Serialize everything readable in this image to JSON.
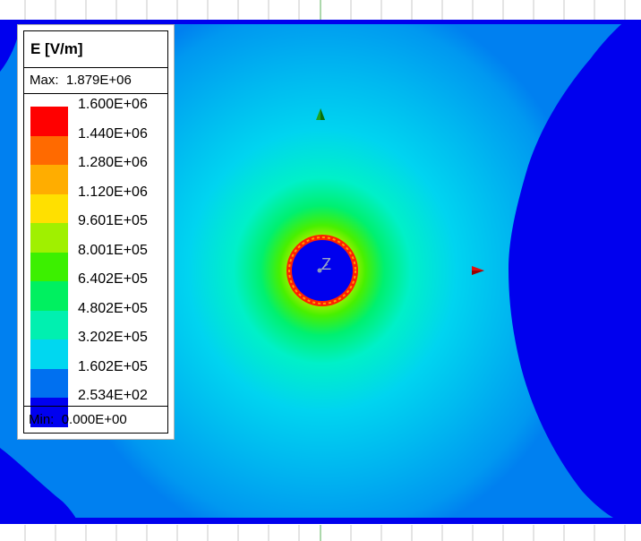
{
  "legend": {
    "title": "E [V/m]",
    "max_label": "Max:",
    "max_value": "1.879E+06",
    "min_label": "Min:",
    "min_value": "0.000E+00",
    "levels": [
      {
        "label": "1.600E+06",
        "color": "#ff0000"
      },
      {
        "label": "1.440E+06",
        "color": "#ff6a00"
      },
      {
        "label": "1.280E+06",
        "color": "#ffad00"
      },
      {
        "label": "1.120E+06",
        "color": "#ffe000"
      },
      {
        "label": "9.601E+05",
        "color": "#a0f000"
      },
      {
        "label": "8.001E+05",
        "color": "#3cf000"
      },
      {
        "label": "6.402E+05",
        "color": "#00f060"
      },
      {
        "label": "4.802E+05",
        "color": "#00f0b0"
      },
      {
        "label": "3.202E+05",
        "color": "#00d7f0"
      },
      {
        "label": "1.602E+05",
        "color": "#0070f0"
      },
      {
        "label": "2.534E+02",
        "color": "#0000f0"
      }
    ]
  },
  "axis": {
    "z_label": "Z"
  }
}
